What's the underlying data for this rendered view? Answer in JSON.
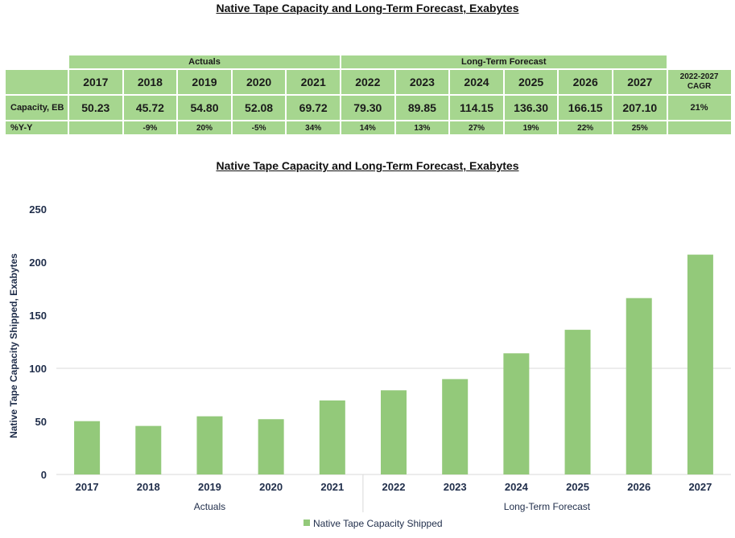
{
  "titles": {
    "table": "Native Tape Capacity and Long-Term Forecast, Exabytes",
    "chart": "Native Tape Capacity and Long-Term Forecast, Exabytes"
  },
  "table": {
    "groups": {
      "actuals": "Actuals",
      "forecast": "Long-Term Forecast"
    },
    "years": [
      "2017",
      "2018",
      "2019",
      "2020",
      "2021",
      "2022",
      "2023",
      "2024",
      "2025",
      "2026",
      "2027"
    ],
    "cagr_header": [
      "2022-2027",
      "CAGR"
    ],
    "capacity_label": "Capacity, EB",
    "capacity": [
      "50.23",
      "45.72",
      "54.80",
      "52.08",
      "69.72",
      "79.30",
      "89.85",
      "114.15",
      "136.30",
      "166.15",
      "207.10"
    ],
    "cagr_value": "21%",
    "yoy_label": "%Y-Y",
    "yoy": [
      "",
      "-9%",
      "20%",
      "-5%",
      "34%",
      "14%",
      "13%",
      "27%",
      "19%",
      "22%",
      "25%"
    ]
  },
  "chart_data": {
    "type": "bar",
    "title": "Native Tape Capacity and Long-Term Forecast, Exabytes",
    "categories": [
      "2017",
      "2018",
      "2019",
      "2020",
      "2021",
      "2022",
      "2023",
      "2024",
      "2025",
      "2026",
      "2027"
    ],
    "series": [
      {
        "name": "Native Tape Capacity Shipped",
        "values": [
          50.23,
          45.72,
          54.8,
          52.08,
          69.72,
          79.3,
          89.85,
          114.15,
          136.3,
          166.15,
          207.1
        ]
      }
    ],
    "groups": [
      {
        "label": "Actuals",
        "from": "2017",
        "to": "2021"
      },
      {
        "label": "Long-Term Forecast",
        "from": "2022",
        "to": "2027"
      }
    ],
    "ylabel": "Native Tape Capacity Shipped, Exabytes",
    "xlabel": "",
    "ylim": [
      0,
      250
    ],
    "yticks": [
      0,
      50,
      100,
      150,
      200,
      250
    ],
    "grid": "y-100-only",
    "legend": "bottom-center",
    "colors": {
      "bar": "#93c97a",
      "grid": "#d9d9d9",
      "axis_text": "#1f2d4a",
      "table_fill": "#a6d68f"
    }
  }
}
